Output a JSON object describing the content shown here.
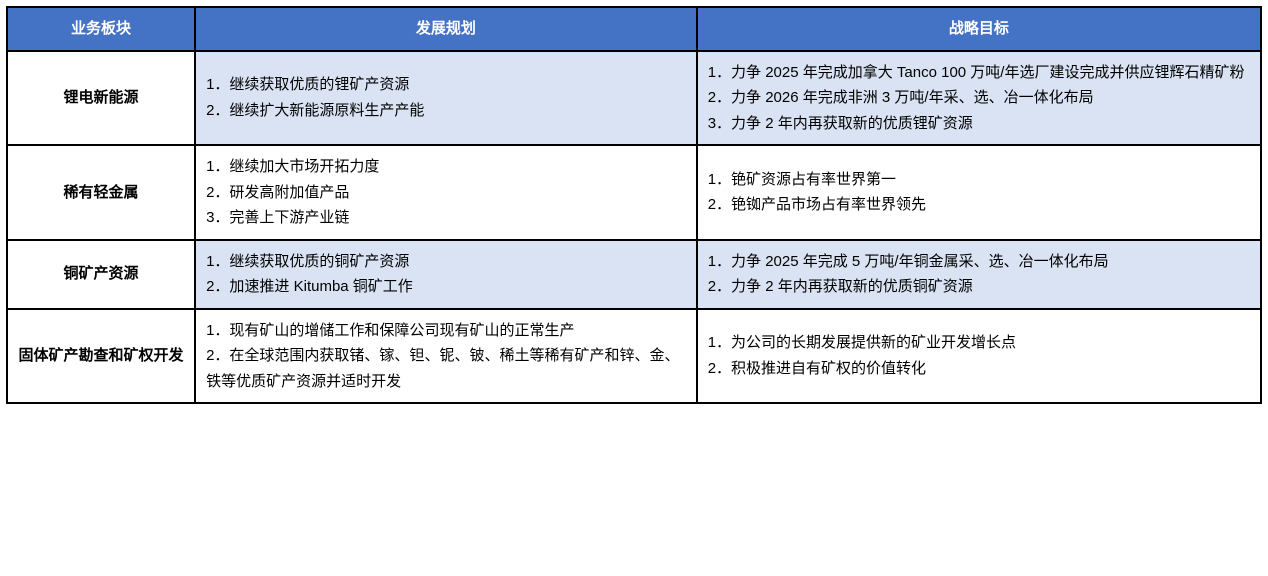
{
  "colors": {
    "header_bg": "#4472c4",
    "header_fg": "#ffffff",
    "shaded_bg": "#dae3f3",
    "border": "#000000"
  },
  "columns": {
    "segment": "业务板块",
    "plan": "发展规划",
    "goal": "战略目标"
  },
  "rows": [
    {
      "shaded": true,
      "segment": "锂电新能源",
      "plan": "1．继续获取优质的锂矿产资源\n2．继续扩大新能源原料生产产能",
      "goal": "1．力争 2025 年完成加拿大 Tanco 100 万吨/年选厂建设完成并供应锂辉石精矿粉\n2．力争 2026 年完成非洲 3 万吨/年采、选、冶一体化布局\n3．力争 2 年内再获取新的优质锂矿资源"
    },
    {
      "shaded": false,
      "segment": "稀有轻金属",
      "plan": "1．继续加大市场开拓力度\n2．研发高附加值产品\n3．完善上下游产业链",
      "goal": "1．铯矿资源占有率世界第一\n2．铯铷产品市场占有率世界领先"
    },
    {
      "shaded": true,
      "segment": "铜矿产资源",
      "plan": "1．继续获取优质的铜矿产资源\n2．加速推进 Kitumba 铜矿工作",
      "goal": "1．力争 2025 年完成 5 万吨/年铜金属采、选、冶一体化布局\n2．力争 2 年内再获取新的优质铜矿资源"
    },
    {
      "shaded": false,
      "segment": "固体矿产勘查和矿权开发",
      "plan": "1．现有矿山的增储工作和保障公司现有矿山的正常生产\n2．在全球范围内获取锗、镓、钽、铌、铍、稀土等稀有矿产和锌、金、铁等优质矿产资源并适时开发",
      "goal": "1．为公司的长期发展提供新的矿业开发增长点\n2．积极推进自有矿权的价值转化"
    }
  ]
}
